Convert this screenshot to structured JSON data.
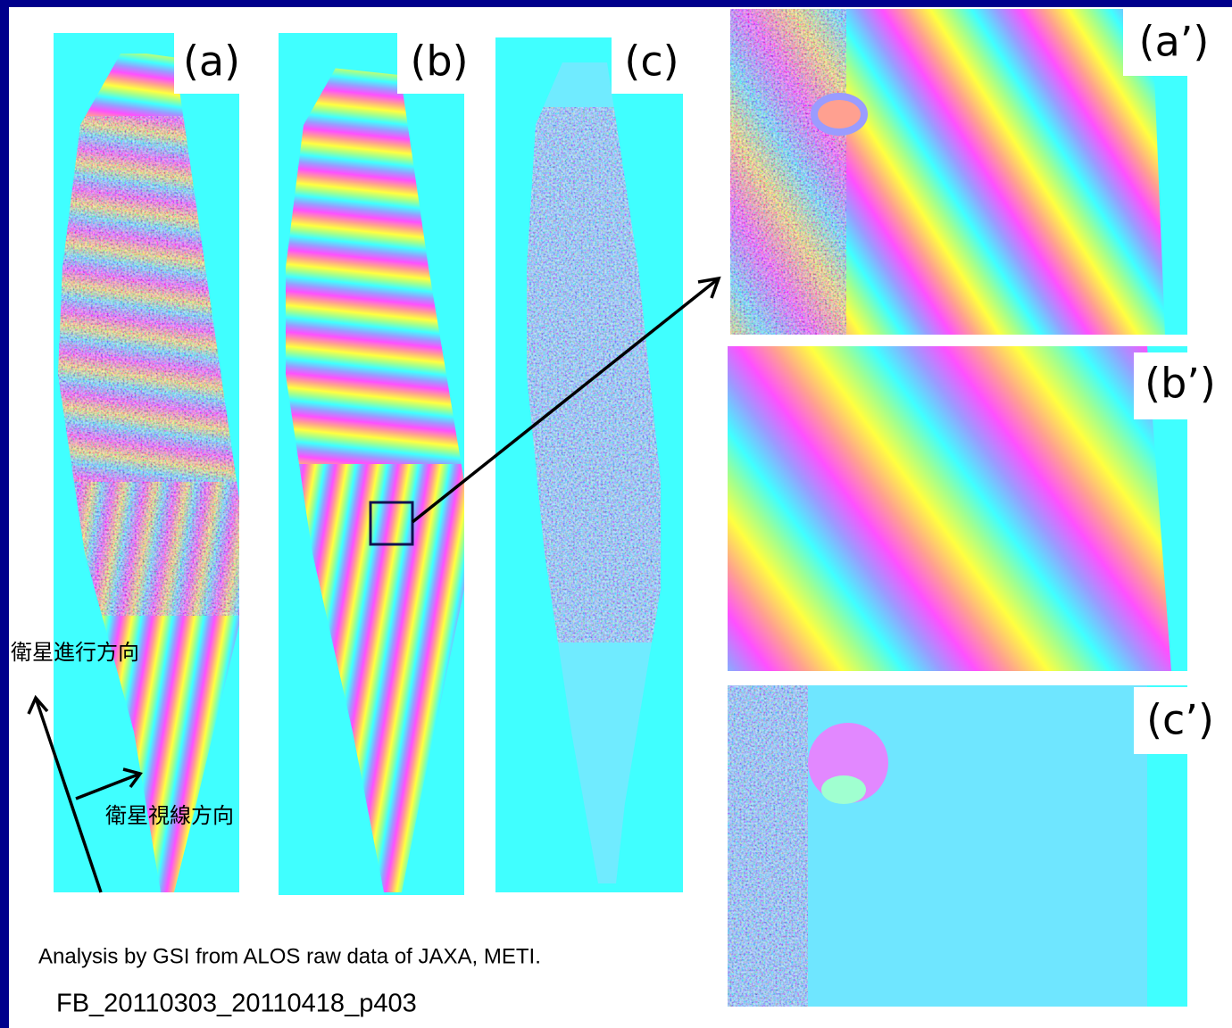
{
  "panels": [
    {
      "label": "(a)"
    },
    {
      "label": "(b)"
    },
    {
      "label": "(c)"
    },
    {
      "label": "(a’)"
    },
    {
      "label": "(b’)"
    },
    {
      "label": "(c’)"
    }
  ],
  "annotations": {
    "flight_direction": "衛星進行方向",
    "look_direction": "衛星視線方向"
  },
  "credit": "Analysis by GSI from ALOS raw data of JAXA, METI.",
  "file_id": "FB_20110303_20110418_p403"
}
